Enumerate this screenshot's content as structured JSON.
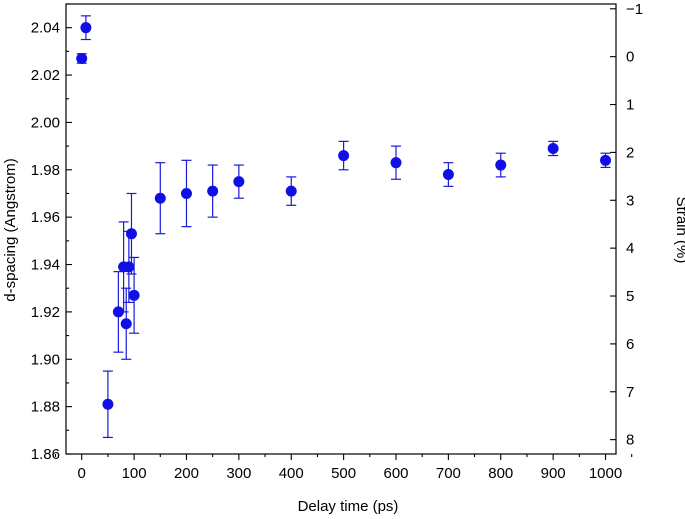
{
  "chart_data": {
    "type": "scatter",
    "title": "",
    "xlabel": "Delay time (ps)",
    "ylabel": "d-spacing (Angstrom)",
    "y2label": "Strain (%)",
    "xlim": [
      -30,
      1020
    ],
    "ylim": [
      1.86,
      2.05
    ],
    "y2lim": [
      8.3,
      -1.1
    ],
    "y2_inverted": true,
    "grid": false,
    "legend": "none",
    "marker_color": "#1010e6",
    "x_ticks": [
      "0",
      "100",
      "200",
      "300",
      "400",
      "500",
      "600",
      "700",
      "800",
      "900",
      "1000"
    ],
    "y_ticks": [
      "1.86",
      "1.88",
      "1.90",
      "1.92",
      "1.94",
      "1.96",
      "1.98",
      "2.00",
      "2.02",
      "2.04"
    ],
    "y2_ticks": [
      "−1",
      "0",
      "1",
      "2",
      "3",
      "4",
      "5",
      "6",
      "7",
      "8"
    ],
    "series": [
      {
        "x": [
          0,
          8,
          50,
          70,
          80,
          85,
          90,
          95,
          100,
          150,
          200,
          250,
          300,
          400,
          500,
          600,
          700,
          800,
          900,
          1000
        ],
        "y": [
          2.027,
          2.04,
          1.881,
          1.92,
          1.939,
          1.915,
          1.939,
          1.953,
          1.927,
          1.968,
          1.97,
          1.971,
          1.975,
          1.971,
          1.986,
          1.983,
          1.978,
          1.982,
          1.989,
          1.984
        ],
        "yerr": [
          0.002,
          0.005,
          0.014,
          0.017,
          0.019,
          0.015,
          0.015,
          0.017,
          0.016,
          0.015,
          0.014,
          0.011,
          0.007,
          0.006,
          0.006,
          0.007,
          0.005,
          0.005,
          0.003,
          0.003
        ]
      }
    ]
  }
}
